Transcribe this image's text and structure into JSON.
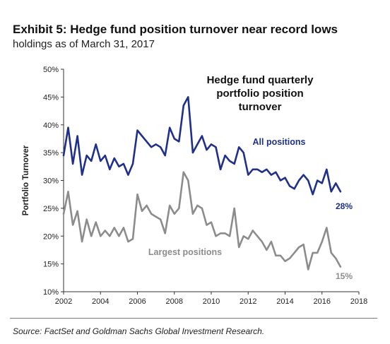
{
  "header": {
    "title": "Exhibit 5: Hedge fund position turnover near record lows",
    "subtitle": "holdings as of March 31, 2017"
  },
  "source": "Source: FactSet and Goldman Sachs Global Investment Research.",
  "chart_data": {
    "type": "line",
    "title": "Hedge fund quarterly portfolio position turnover",
    "title_lines": [
      "Hedge fund quarterly",
      "portfolio position",
      "turnover"
    ],
    "ylabel": "Portfolio Turnover",
    "xlabel": "",
    "xlim": [
      2002,
      2018
    ],
    "ylim": [
      10,
      50
    ],
    "x_ticks": [
      "2002",
      "2004",
      "2006",
      "2008",
      "2010",
      "2012",
      "2014",
      "2016",
      "2018"
    ],
    "y_ticks": [
      "10%",
      "15%",
      "20%",
      "25%",
      "30%",
      "35%",
      "40%",
      "45%",
      "50%"
    ],
    "grid": false,
    "series": [
      {
        "name": "All positions",
        "color": "#1f2f8c",
        "end_label": "28%",
        "x": [
          2002.0,
          2002.25,
          2002.5,
          2002.75,
          2003.0,
          2003.25,
          2003.5,
          2003.75,
          2004.0,
          2004.25,
          2004.5,
          2004.75,
          2005.0,
          2005.25,
          2005.5,
          2005.75,
          2006.0,
          2006.25,
          2006.5,
          2006.75,
          2007.0,
          2007.25,
          2007.5,
          2007.75,
          2008.0,
          2008.25,
          2008.5,
          2008.75,
          2009.0,
          2009.25,
          2009.5,
          2009.75,
          2010.0,
          2010.25,
          2010.5,
          2010.75,
          2011.0,
          2011.25,
          2011.5,
          2011.75,
          2012.0,
          2012.25,
          2012.5,
          2012.75,
          2013.0,
          2013.25,
          2013.5,
          2013.75,
          2014.0,
          2014.25,
          2014.5,
          2014.75,
          2015.0,
          2015.25,
          2015.5,
          2015.75,
          2016.0,
          2016.25,
          2016.5,
          2016.75,
          2017.0
        ],
        "values": [
          34.5,
          39.5,
          33,
          38,
          31,
          34.5,
          33.5,
          36.5,
          33.5,
          34.5,
          32,
          34,
          32.5,
          33,
          31,
          33,
          39,
          38,
          37,
          36,
          36.5,
          36,
          34.5,
          39.5,
          37.5,
          37,
          43.5,
          45,
          35,
          36.5,
          38,
          35.5,
          36.5,
          36,
          32,
          34.5,
          33.5,
          33,
          36,
          35,
          31,
          32,
          32,
          31.5,
          32,
          31,
          31.5,
          30,
          30.5,
          29,
          28.5,
          30,
          31,
          30,
          27.5,
          30,
          29.5,
          32,
          28,
          29.5,
          28
        ]
      },
      {
        "name": "Largest positions",
        "color": "#8c8c8c",
        "end_label": "15%",
        "x": [
          2002.0,
          2002.25,
          2002.5,
          2002.75,
          2003.0,
          2003.25,
          2003.5,
          2003.75,
          2004.0,
          2004.25,
          2004.5,
          2004.75,
          2005.0,
          2005.25,
          2005.5,
          2005.75,
          2006.0,
          2006.25,
          2006.5,
          2006.75,
          2007.0,
          2007.25,
          2007.5,
          2007.75,
          2008.0,
          2008.25,
          2008.5,
          2008.75,
          2009.0,
          2009.25,
          2009.5,
          2009.75,
          2010.0,
          2010.25,
          2010.5,
          2010.75,
          2011.0,
          2011.25,
          2011.5,
          2011.75,
          2012.0,
          2012.25,
          2012.5,
          2012.75,
          2013.0,
          2013.25,
          2013.5,
          2013.75,
          2014.0,
          2014.25,
          2014.5,
          2014.75,
          2015.0,
          2015.25,
          2015.5,
          2015.75,
          2016.0,
          2016.25,
          2016.5,
          2016.75,
          2017.0
        ],
        "values": [
          24,
          28,
          22,
          24.5,
          19,
          23,
          20,
          22.5,
          20,
          21,
          20,
          21.5,
          20,
          21.5,
          19,
          19.5,
          27.5,
          24.5,
          25.5,
          24,
          23.5,
          23,
          20.5,
          25.5,
          24,
          25,
          31.5,
          30,
          24,
          25.5,
          25,
          22,
          22.5,
          20,
          20.5,
          20.5,
          20,
          25,
          18,
          20,
          19.5,
          21,
          20,
          19,
          17.5,
          19,
          16.5,
          16.5,
          15.5,
          16,
          17,
          18,
          18.5,
          14,
          17,
          17,
          19,
          21.5,
          17,
          16,
          14.5
        ]
      }
    ]
  }
}
